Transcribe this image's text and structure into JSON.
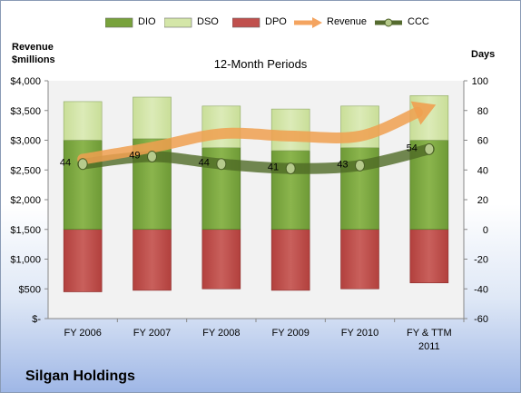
{
  "legend": [
    {
      "label": "DIO",
      "kind": "box",
      "color": "#78a23c"
    },
    {
      "label": "DSO",
      "kind": "box",
      "color": "#d4e6a8"
    },
    {
      "label": "DPO",
      "kind": "box",
      "color": "#c0504d"
    },
    {
      "label": "Revenue",
      "kind": "arrow",
      "color": "#f4a460"
    },
    {
      "label": "CCC",
      "kind": "line",
      "color": "#556b2f"
    }
  ],
  "subtitle": "12-Month Periods",
  "left_axis_title": "Revenue\n$millions",
  "right_axis_title": "Days",
  "company": "Silgan Holdings",
  "chart_data": {
    "type": "bar",
    "title": "12-Month Periods",
    "categories": [
      "FY 2006",
      "FY 2007",
      "FY 2008",
      "FY 2009",
      "FY 2010",
      "FY & TTM 2011"
    ],
    "left_axis": {
      "label": "Revenue $millions",
      "range": [
        0,
        4000
      ],
      "ticks": [
        "$-",
        "$500",
        "$1,000",
        "$1,500",
        "$2,000",
        "$2,500",
        "$3,000",
        "$3,500",
        "$4,000"
      ]
    },
    "right_axis": {
      "label": "Days",
      "range": [
        -60,
        100
      ],
      "ticks": [
        "-60",
        "-40",
        "-20",
        "0",
        "20",
        "40",
        "60",
        "80",
        "100"
      ]
    },
    "series": [
      {
        "name": "DIO",
        "type": "stacked-bar",
        "axis": "right",
        "color": "#78a23c",
        "values": [
          60,
          61,
          55,
          53,
          55,
          60
        ]
      },
      {
        "name": "DSO",
        "type": "stacked-bar",
        "axis": "right",
        "color": "#d4e6a8",
        "values": [
          26,
          28,
          28,
          28,
          28,
          30
        ]
      },
      {
        "name": "DPO",
        "type": "stacked-bar",
        "axis": "right",
        "color": "#c0504d",
        "values": [
          -42,
          -41,
          -40,
          -41,
          -40,
          -36
        ]
      },
      {
        "name": "Revenue",
        "type": "line-arrow",
        "axis": "left",
        "color": "#f0a050",
        "values": [
          2680,
          2880,
          3110,
          3070,
          3070,
          3550
        ]
      },
      {
        "name": "CCC",
        "type": "line",
        "axis": "right",
        "color": "#55702a",
        "values": [
          44,
          49,
          44,
          41,
          43,
          54
        ],
        "labels": [
          "44",
          "49",
          "44",
          "41",
          "43",
          "54"
        ]
      }
    ],
    "grid": false,
    "legend_position": "top"
  }
}
